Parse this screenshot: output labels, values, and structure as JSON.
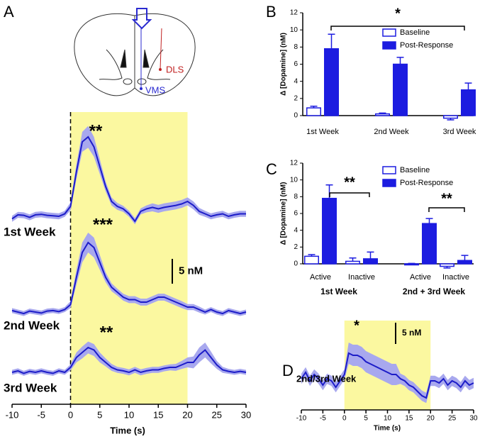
{
  "chart_data": [
    {
      "type": "trace",
      "panel": "A",
      "xlabel": "Time (s)",
      "x": [
        -10,
        -9,
        -8,
        -7,
        -6,
        -5,
        -4,
        -3,
        -2,
        -1,
        0,
        1,
        2,
        3,
        4,
        5,
        6,
        7,
        8,
        9,
        10,
        11,
        12,
        13,
        14,
        15,
        16,
        17,
        18,
        19,
        20,
        21,
        22,
        23,
        24,
        25,
        26,
        27,
        28,
        29,
        30
      ],
      "xlim": [
        -10,
        30
      ],
      "xticks": [
        -10,
        -5,
        0,
        5,
        10,
        15,
        20,
        25,
        30
      ],
      "highlight": [
        0,
        20
      ],
      "color": "#1c1cc8",
      "band_color": "#a8a8ee",
      "highlight_color": "#fbf8a0",
      "series": [
        {
          "name": "1st Week",
          "annotation": "**",
          "values": [
            -0.5,
            0.3,
            0.2,
            -0.2,
            0.3,
            0.4,
            0.2,
            0.1,
            0.0,
            0.5,
            2,
            9,
            15,
            16,
            14,
            10,
            6,
            3,
            2,
            1.5,
            0.5,
            -1,
            1,
            1.5,
            1.8,
            1.5,
            1.8,
            2,
            2.2,
            2.5,
            3,
            2.2,
            1,
            0.5,
            0,
            0.3,
            0.5,
            0,
            0.3,
            0.5,
            0.5
          ],
          "errors": [
            0.6,
            0.6,
            0.6,
            0.6,
            0.6,
            0.6,
            0.6,
            0.6,
            0.6,
            0.6,
            0.8,
            1.5,
            2,
            2.2,
            2,
            1.5,
            1,
            0.8,
            0.7,
            0.6,
            0.6,
            0.6,
            0.6,
            0.7,
            0.8,
            0.8,
            0.8,
            0.8,
            0.8,
            0.8,
            0.8,
            0.8,
            0.7,
            0.6,
            0.6,
            0.6,
            0.6,
            0.6,
            0.6,
            0.6,
            0.6
          ]
        },
        {
          "name": "2nd Week",
          "annotation": "***",
          "values": [
            0.3,
            0,
            -0.3,
            0.2,
            0,
            -0.2,
            0.2,
            0.3,
            0.1,
            0.5,
            1.5,
            7,
            12,
            14,
            13,
            10,
            7,
            5,
            4,
            3,
            2.5,
            2.5,
            2,
            2,
            2.5,
            3,
            3,
            2.5,
            2,
            1.5,
            1,
            1,
            0.5,
            0,
            0.5,
            0,
            -0.3,
            0.3,
            0,
            -0.3,
            0
          ],
          "errors": [
            0.5,
            0.5,
            0.5,
            0.5,
            0.5,
            0.5,
            0.5,
            0.5,
            0.5,
            0.5,
            0.7,
            1.5,
            2,
            2,
            2,
            1.5,
            1,
            0.8,
            0.7,
            0.7,
            0.7,
            0.7,
            0.7,
            0.7,
            0.7,
            0.7,
            0.7,
            0.7,
            0.7,
            0.7,
            0.6,
            0.6,
            0.6,
            0.5,
            0.5,
            0.5,
            0.5,
            0.5,
            0.5,
            0.5,
            0.5
          ]
        },
        {
          "name": "3rd Week",
          "annotation": "**",
          "values": [
            0,
            0.3,
            -0.2,
            0.2,
            0,
            0.3,
            0,
            -0.2,
            0.3,
            0,
            1,
            3,
            4,
            5,
            4.5,
            3,
            2,
            1,
            0.5,
            0.3,
            0,
            0.5,
            0,
            0.3,
            0.5,
            0.5,
            0.8,
            1,
            1,
            1.5,
            2,
            2,
            3.5,
            4.5,
            3,
            1.5,
            0.5,
            0.2,
            0,
            0.2,
            0
          ],
          "errors": [
            0.5,
            0.5,
            0.5,
            0.5,
            0.5,
            0.5,
            0.5,
            0.5,
            0.5,
            0.5,
            0.6,
            1,
            1.2,
            1.2,
            1.2,
            1,
            0.8,
            0.7,
            0.6,
            0.6,
            0.6,
            0.6,
            0.6,
            0.6,
            0.6,
            0.6,
            0.6,
            0.6,
            0.7,
            0.8,
            1,
            1.2,
            1.5,
            1.5,
            1.2,
            0.8,
            0.6,
            0.5,
            0.5,
            0.5,
            0.5
          ]
        }
      ],
      "scale_bar": {
        "value": 5,
        "label": "5 nM"
      },
      "diagram_labels": [
        "DLS",
        "VMS"
      ]
    },
    {
      "type": "bar",
      "panel": "B",
      "ylabel": "Δ [Dopamine] (nM)",
      "categories": [
        "1st Week",
        "2nd Week",
        "3rd Week"
      ],
      "ylim": [
        0,
        12
      ],
      "yticks": [
        0,
        2,
        4,
        6,
        8,
        10,
        12
      ],
      "series": [
        {
          "name": "Baseline",
          "color": "#1c1ce0",
          "filled": false,
          "values": [
            0.9,
            0.2,
            -0.3
          ],
          "errors": [
            0.2,
            0.1,
            0.2
          ]
        },
        {
          "name": "Post-Response",
          "color": "#1c1ce0",
          "filled": true,
          "values": [
            7.8,
            6.0,
            3.0
          ],
          "errors": [
            1.7,
            0.8,
            0.8
          ]
        }
      ],
      "annotations": [
        "*"
      ]
    },
    {
      "type": "bar",
      "panel": "C",
      "ylabel": "Δ [Dopamine] (nM)",
      "categories": [
        "Active",
        "Inactive",
        "Active",
        "Inactive"
      ],
      "groups": [
        "1st Week",
        "2nd + 3rd Week"
      ],
      "ylim": [
        0,
        12
      ],
      "yticks": [
        0,
        2,
        4,
        6,
        8,
        10,
        12
      ],
      "series": [
        {
          "name": "Baseline",
          "color": "#1c1ce0",
          "filled": false,
          "values": [
            0.9,
            0.3,
            0.0,
            -0.3
          ],
          "errors": [
            0.2,
            0.4,
            0.05,
            0.2
          ]
        },
        {
          "name": "Post-Response",
          "color": "#1c1ce0",
          "filled": true,
          "values": [
            7.8,
            0.6,
            4.8,
            0.4
          ],
          "errors": [
            1.6,
            0.8,
            0.6,
            0.6
          ]
        }
      ],
      "annotations": [
        "**",
        "**"
      ]
    },
    {
      "type": "trace",
      "panel": "D",
      "xlabel": "Time (s)",
      "x": [
        -10,
        -9,
        -8,
        -7,
        -6,
        -5,
        -4,
        -3,
        -2,
        -1,
        0,
        1,
        2,
        3,
        4,
        5,
        6,
        7,
        8,
        9,
        10,
        11,
        12,
        13,
        14,
        15,
        16,
        17,
        18,
        19,
        20,
        21,
        22,
        23,
        24,
        25,
        26,
        27,
        28,
        29,
        30
      ],
      "xlim": [
        -10,
        30
      ],
      "xticks": [
        -10,
        -5,
        0,
        5,
        10,
        15,
        20,
        25,
        30
      ],
      "highlight": [
        0,
        20
      ],
      "color": "#1c1cc8",
      "band_color": "#a8a8ee",
      "highlight_color": "#fbf8a0",
      "series": [
        {
          "name": "2nd/3rd Week",
          "annotation": "*",
          "values": [
            1,
            2.5,
            0.5,
            2,
            1,
            -0.5,
            1,
            0.5,
            -1,
            0.5,
            2,
            7,
            6.5,
            6.5,
            6,
            5,
            4.5,
            4,
            3.5,
            3,
            2.5,
            2,
            2,
            1,
            0.5,
            -0.5,
            -1,
            -2,
            -3,
            -3.5,
            0.5,
            0.5,
            0,
            1,
            -0.5,
            0.5,
            0,
            -1,
            0.5,
            -0.5,
            0
          ],
          "errors": [
            1.2,
            1.2,
            1.2,
            1.2,
            1.2,
            1.2,
            1.2,
            1.2,
            1.2,
            1.2,
            1.2,
            2.5,
            2.5,
            2.5,
            2.5,
            2.5,
            2.5,
            2.5,
            2.5,
            2.5,
            2.5,
            2.5,
            2.5,
            1.2,
            1.2,
            1.2,
            1.2,
            1.2,
            1.2,
            1.2,
            1.2,
            1.2,
            1.2,
            1.2,
            1.2,
            1.2,
            1.2,
            1.2,
            1.2,
            1.2,
            1.2
          ]
        }
      ],
      "scale_bar": {
        "value": 5,
        "label": "5 nM"
      }
    }
  ]
}
